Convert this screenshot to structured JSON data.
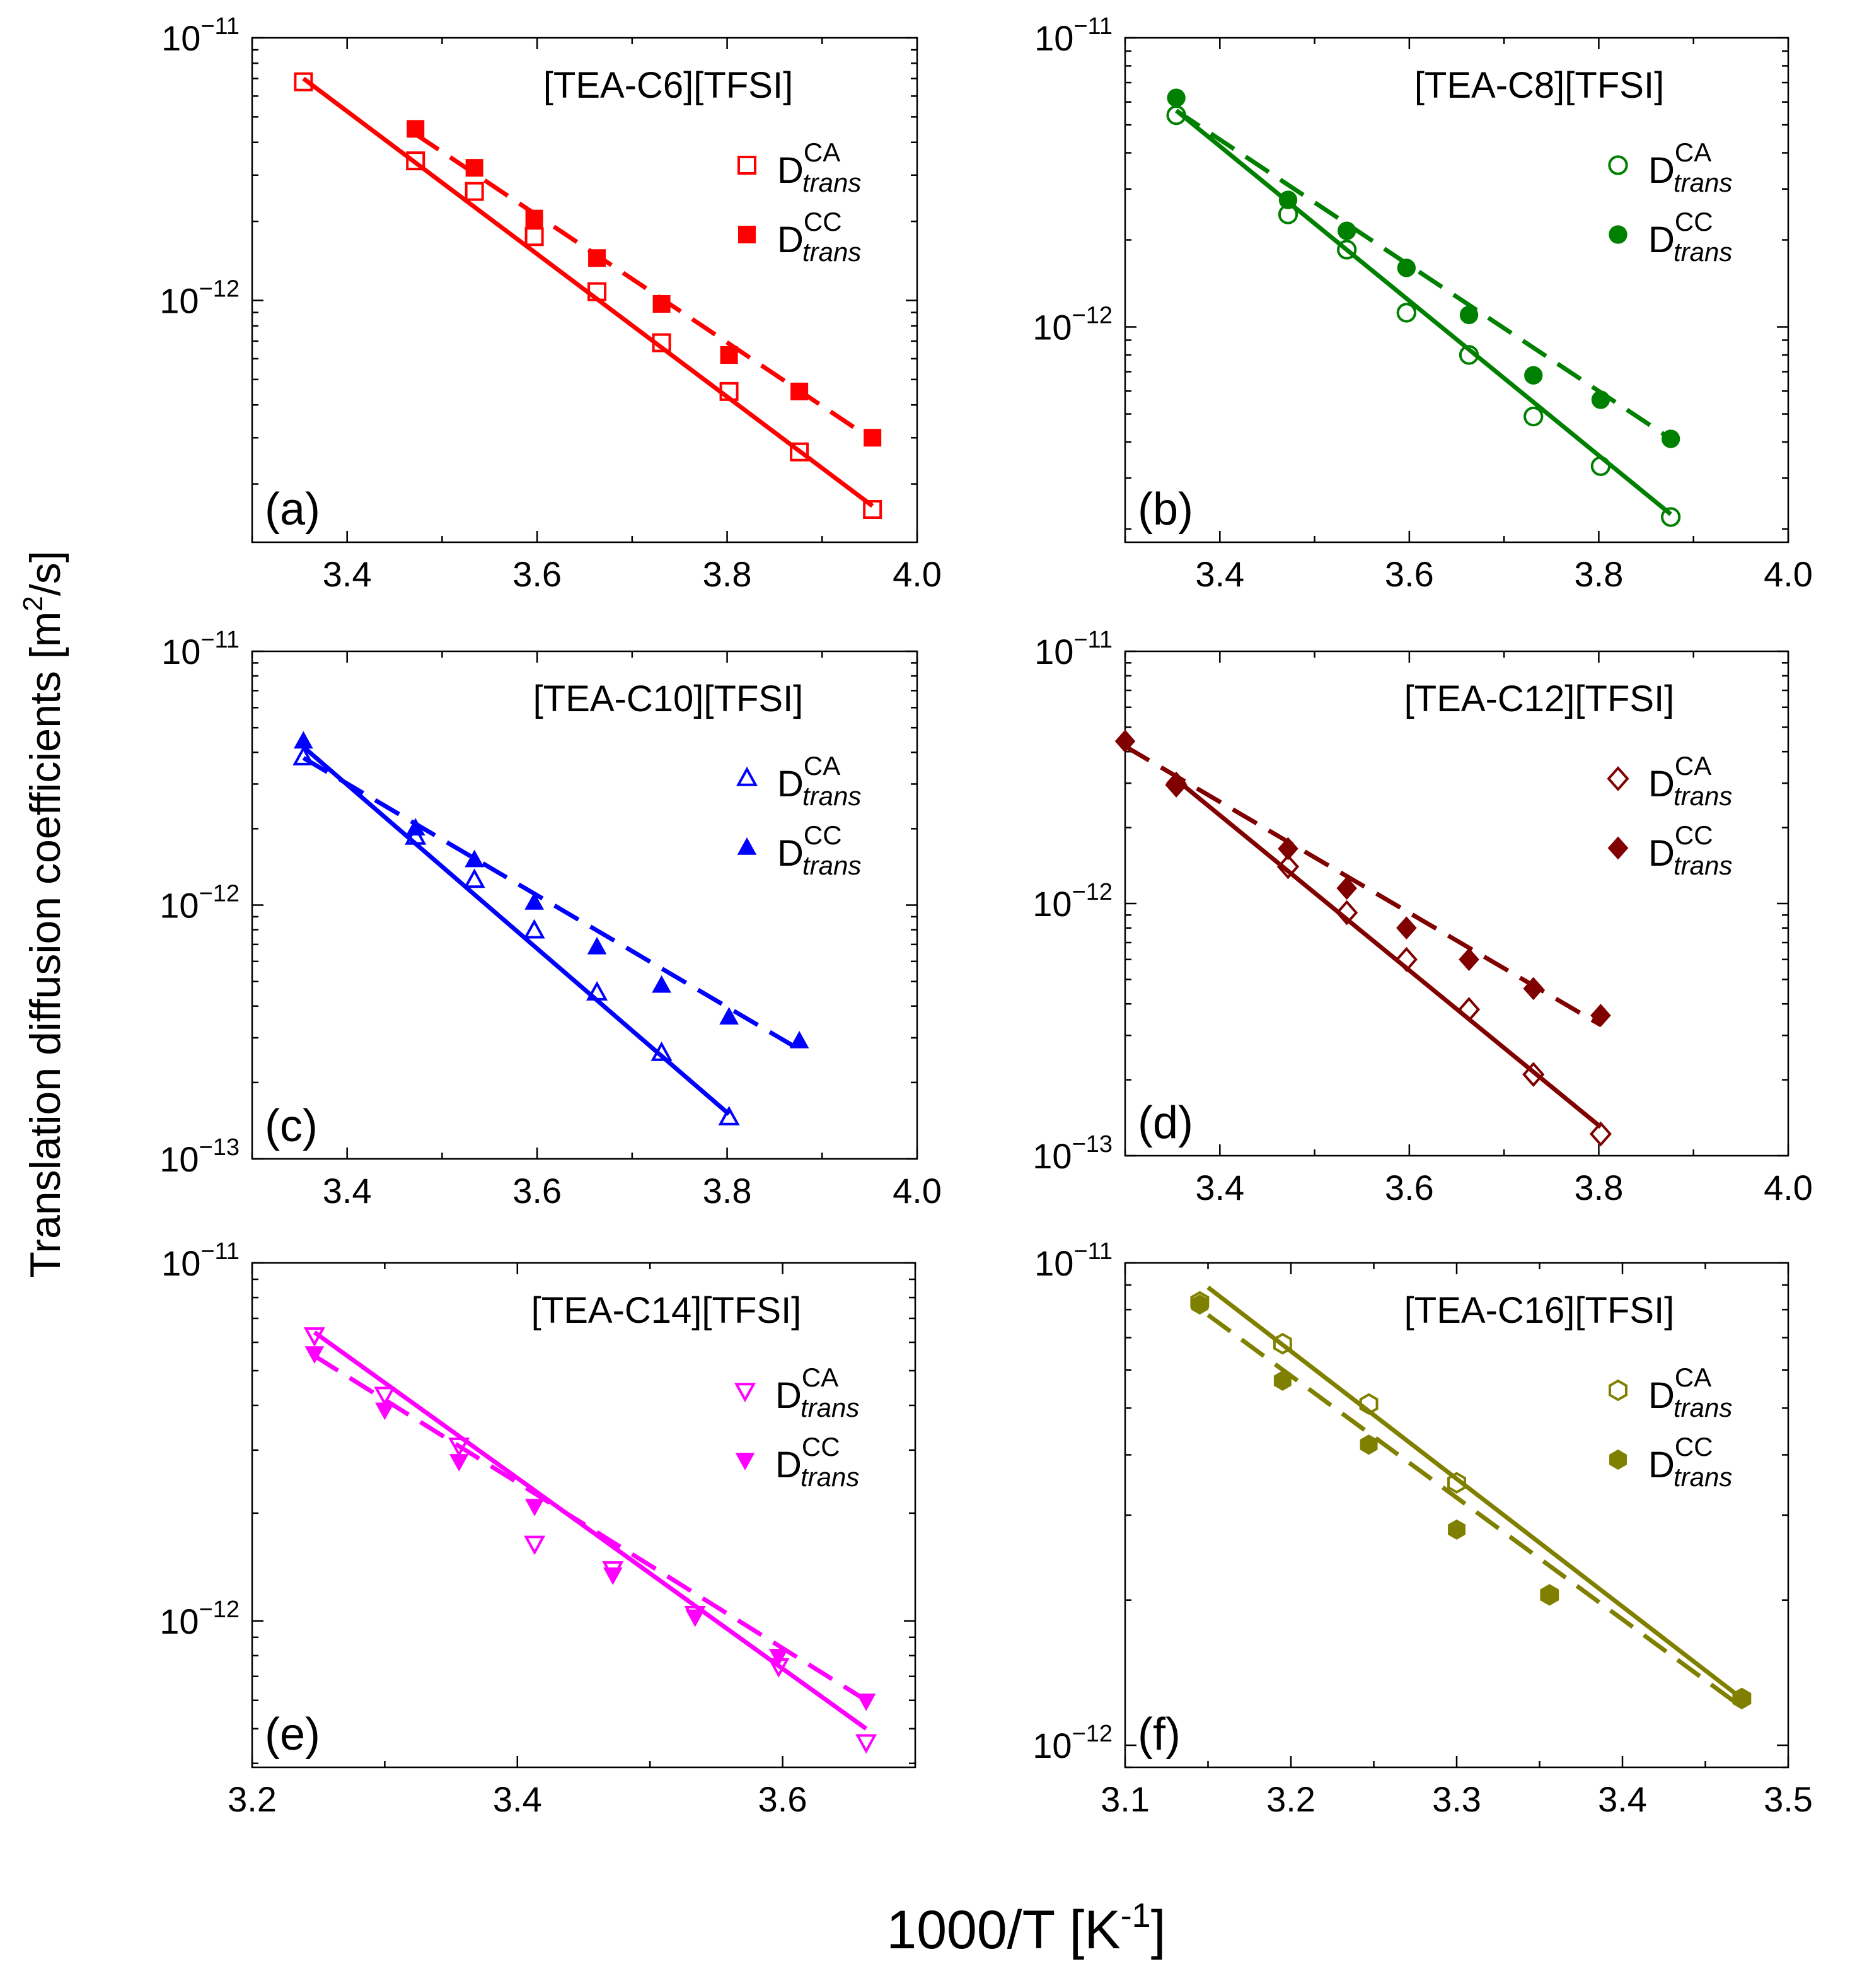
{
  "figure": {
    "ylabel": "Translation diffusion coefficients [m",
    "ylabel_sup": "2",
    "ylabel_tail": "/s]",
    "xlabel": "1000/T [K",
    "xlabel_sup": "-1",
    "xlabel_tail": "]"
  },
  "chart_data": [
    {
      "type": "scatter",
      "panel": "(a)",
      "title": "[TEA-C6][TFSI]",
      "color": "#ff0000",
      "marker": "square",
      "xlim": [
        3.3,
        4.0
      ],
      "ylim": [
        1.2e-13,
        1e-11
      ],
      "xticks": [
        3.4,
        3.6,
        3.8,
        4.0
      ],
      "xtick_labels": [
        "3.4",
        "3.6",
        "3.8",
        "4.0"
      ],
      "yticks": [
        1e-11,
        1e-12
      ],
      "ytick_labels": [
        {
          "base": "10",
          "exp": "−11"
        },
        {
          "base": "10",
          "exp": "−12"
        }
      ],
      "legend_position": "top-right",
      "series": [
        {
          "name": "D",
          "sup": "CA",
          "sub": "trans",
          "filled": false,
          "line": "solid",
          "x": [
            3.354,
            3.472,
            3.534,
            3.597,
            3.663,
            3.731,
            3.802,
            3.876,
            3.953
          ],
          "y": [
            6.8e-12,
            3.4e-12,
            2.6e-12,
            1.75e-12,
            1.08e-12,
            6.9e-13,
            4.5e-13,
            2.65e-13,
            1.6e-13
          ],
          "fit": [
            [
              3.354,
              7e-12
            ],
            [
              3.953,
              1.65e-13
            ]
          ]
        },
        {
          "name": "D",
          "sup": "CC",
          "sub": "trans",
          "filled": true,
          "line": "dashed",
          "x": [
            3.472,
            3.534,
            3.597,
            3.663,
            3.731,
            3.802,
            3.876,
            3.953
          ],
          "y": [
            4.5e-12,
            3.2e-12,
            2.05e-12,
            1.45e-12,
            9.7e-13,
            6.2e-13,
            4.5e-13,
            3e-13
          ],
          "fit": [
            [
              3.472,
              4.3e-12
            ],
            [
              3.953,
              2.95e-13
            ]
          ]
        }
      ]
    },
    {
      "type": "scatter",
      "panel": "(b)",
      "title": "[TEA-C8][TFSI]",
      "color": "#008000",
      "marker": "circle",
      "xlim": [
        3.3,
        4.0
      ],
      "ylim": [
        1.8e-13,
        1e-11
      ],
      "xticks": [
        3.4,
        3.6,
        3.8,
        4.0
      ],
      "xtick_labels": [
        "3.4",
        "3.6",
        "3.8",
        "4.0"
      ],
      "yticks": [
        1e-11,
        1e-12
      ],
      "ytick_labels": [
        {
          "base": "10",
          "exp": "−11"
        },
        {
          "base": "10",
          "exp": "−12"
        }
      ],
      "legend_position": "top-right",
      "series": [
        {
          "name": "D",
          "sup": "CA",
          "sub": "trans",
          "filled": false,
          "line": "solid",
          "x": [
            3.354,
            3.472,
            3.534,
            3.597,
            3.663,
            3.731,
            3.802,
            3.876
          ],
          "y": [
            5.4e-12,
            2.45e-12,
            1.85e-12,
            1.12e-12,
            8e-13,
            4.9e-13,
            3.3e-13,
            2.2e-13
          ],
          "fit": [
            [
              3.354,
              5.6e-12
            ],
            [
              3.876,
              2.25e-13
            ]
          ]
        },
        {
          "name": "D",
          "sup": "CC",
          "sub": "trans",
          "filled": true,
          "line": "dashed",
          "x": [
            3.354,
            3.472,
            3.534,
            3.597,
            3.663,
            3.731,
            3.802,
            3.876
          ],
          "y": [
            6.2e-12,
            2.75e-12,
            2.15e-12,
            1.6e-12,
            1.1e-12,
            6.8e-13,
            5.6e-13,
            4.1e-13
          ],
          "fit": [
            [
              3.354,
              5.6e-12
            ],
            [
              3.876,
              4.1e-13
            ]
          ]
        }
      ]
    },
    {
      "type": "scatter",
      "panel": "(c)",
      "title": "[TEA-C10][TFSI]",
      "color": "#0000ff",
      "marker": "triangle-up",
      "xlim": [
        3.3,
        4.0
      ],
      "ylim": [
        1e-13,
        1e-11
      ],
      "xticks": [
        3.4,
        3.6,
        3.8,
        4.0
      ],
      "xtick_labels": [
        "3.4",
        "3.6",
        "3.8",
        "4.0"
      ],
      "yticks": [
        1e-11,
        1e-12,
        1e-13
      ],
      "ytick_labels": [
        {
          "base": "10",
          "exp": "−11"
        },
        {
          "base": "10",
          "exp": "−12"
        },
        {
          "base": "10",
          "exp": "−13"
        }
      ],
      "legend_position": "top-right",
      "series": [
        {
          "name": "D",
          "sup": "CA",
          "sub": "trans",
          "filled": false,
          "line": "solid",
          "x": [
            3.354,
            3.472,
            3.534,
            3.597,
            3.663,
            3.731,
            3.802
          ],
          "y": [
            3.8e-12,
            1.85e-12,
            1.25e-12,
            7.9e-13,
            4.5e-13,
            2.6e-13,
            1.45e-13
          ],
          "fit": [
            [
              3.354,
              4.2e-12
            ],
            [
              3.802,
              1.5e-13
            ]
          ]
        },
        {
          "name": "D",
          "sup": "CC",
          "sub": "trans",
          "filled": true,
          "line": "dashed",
          "x": [
            3.354,
            3.472,
            3.534,
            3.597,
            3.663,
            3.731,
            3.802,
            3.876
          ],
          "y": [
            4.4e-12,
            2e-12,
            1.5e-12,
            1.02e-12,
            6.8e-13,
            4.8e-13,
            3.6e-13,
            2.9e-13
          ],
          "fit": [
            [
              3.354,
              3.8e-12
            ],
            [
              3.876,
              2.7e-13
            ]
          ]
        }
      ]
    },
    {
      "type": "scatter",
      "panel": "(d)",
      "title": "[TEA-C12][TFSI]",
      "color": "#800000",
      "marker": "diamond",
      "xlim": [
        3.3,
        4.0
      ],
      "ylim": [
        1e-13,
        1e-11
      ],
      "xticks": [
        3.4,
        3.6,
        3.8,
        4.0
      ],
      "xtick_labels": [
        "3.4",
        "3.6",
        "3.8",
        "4.0"
      ],
      "yticks": [
        1e-11,
        1e-12,
        1e-13
      ],
      "ytick_labels": [
        {
          "base": "10",
          "exp": "−11"
        },
        {
          "base": "10",
          "exp": "−12"
        },
        {
          "base": "10",
          "exp": "−13"
        }
      ],
      "legend_position": "top-right",
      "series": [
        {
          "name": "D",
          "sup": "CA",
          "sub": "trans",
          "filled": false,
          "line": "solid",
          "x": [
            3.354,
            3.472,
            3.534,
            3.597,
            3.663,
            3.731,
            3.802
          ],
          "y": [
            2.95e-12,
            1.4e-12,
            9.2e-13,
            6e-13,
            3.8e-13,
            2.1e-13,
            1.22e-13
          ],
          "fit": [
            [
              3.354,
              3.1e-12
            ],
            [
              3.802,
              1.3e-13
            ]
          ]
        },
        {
          "name": "D",
          "sup": "CC",
          "sub": "trans",
          "filled": true,
          "line": "dashed",
          "x": [
            3.3,
            3.354,
            3.472,
            3.534,
            3.597,
            3.663,
            3.731,
            3.802
          ],
          "y": [
            4.4e-12,
            3e-12,
            1.65e-12,
            1.15e-12,
            8e-13,
            6e-13,
            4.6e-13,
            3.6e-13
          ],
          "fit": [
            [
              3.3,
              4.2e-12
            ],
            [
              3.802,
              3.3e-13
            ]
          ]
        }
      ]
    },
    {
      "type": "scatter",
      "panel": "(e)",
      "title": "[TEA-C14][TFSI]",
      "color": "#ff00ff",
      "marker": "triangle-down",
      "xlim": [
        3.2,
        3.7
      ],
      "ylim": [
        3.9e-13,
        1e-11
      ],
      "xticks": [
        3.2,
        3.4,
        3.6
      ],
      "xtick_labels": [
        "3.2",
        "3.4",
        "3.6"
      ],
      "yticks": [
        1e-11,
        1e-12
      ],
      "ytick_labels": [
        {
          "base": "10",
          "exp": "−11"
        },
        {
          "base": "10",
          "exp": "−12"
        }
      ],
      "legend_position": "top-right",
      "series": [
        {
          "name": "D",
          "sup": "CA",
          "sub": "trans",
          "filled": false,
          "line": "solid",
          "x": [
            3.247,
            3.3,
            3.356,
            3.413,
            3.472,
            3.534,
            3.597,
            3.663
          ],
          "y": [
            6.3e-12,
            4.3e-12,
            3.1e-12,
            1.65e-12,
            1.4e-12,
            1.05e-12,
            7.5e-13,
            4.6e-13
          ],
          "fit": [
            [
              3.247,
              6.4e-12
            ],
            [
              3.663,
              5e-13
            ]
          ]
        },
        {
          "name": "D",
          "sup": "CC",
          "sub": "trans",
          "filled": true,
          "line": "dashed",
          "x": [
            3.247,
            3.3,
            3.356,
            3.413,
            3.472,
            3.534,
            3.597,
            3.663
          ],
          "y": [
            5.6e-12,
            3.9e-12,
            2.8e-12,
            2.1e-12,
            1.35e-12,
            1.03e-12,
            8e-13,
            6e-13
          ],
          "fit": [
            [
              3.247,
              5.5e-12
            ],
            [
              3.663,
              6e-13
            ]
          ]
        }
      ]
    },
    {
      "type": "scatter",
      "panel": "(f)",
      "title": "[TEA-C16][TFSI]",
      "color": "#808000",
      "marker": "hexagon",
      "xlim": [
        3.1,
        3.5
      ],
      "ylim": [
        9e-13,
        1e-11
      ],
      "xticks": [
        3.1,
        3.2,
        3.3,
        3.4,
        3.5
      ],
      "xtick_labels": [
        "3.1",
        "3.2",
        "3.3",
        "3.4",
        "3.5"
      ],
      "yticks": [
        1e-11,
        1e-12
      ],
      "ytick_labels": [
        {
          "base": "10",
          "exp": "−11"
        },
        {
          "base": "10",
          "exp": "−12"
        }
      ],
      "legend_position": "top-right",
      "series": [
        {
          "name": "D",
          "sup": "CA",
          "sub": "trans",
          "filled": false,
          "line": "solid",
          "x": [
            3.145,
            3.195,
            3.247,
            3.3,
            3.356,
            3.472
          ],
          "y": [
            8.3e-12,
            6.8e-12,
            5.1e-12,
            3.5e-12,
            2.05e-12,
            1.25e-12
          ],
          "fit": [
            [
              3.15,
              8.9e-12
            ],
            [
              3.472,
              1.25e-12
            ]
          ]
        },
        {
          "name": "D",
          "sup": "CC",
          "sub": "trans",
          "filled": true,
          "line": "dashed",
          "x": [
            3.145,
            3.195,
            3.247,
            3.3,
            3.356,
            3.472
          ],
          "y": [
            8.2e-12,
            5.7e-12,
            4.2e-12,
            2.8e-12,
            2.05e-12,
            1.25e-12
          ],
          "fit": [
            [
              3.15,
              7.8e-12
            ],
            [
              3.472,
              1.2e-12
            ]
          ]
        }
      ]
    }
  ]
}
